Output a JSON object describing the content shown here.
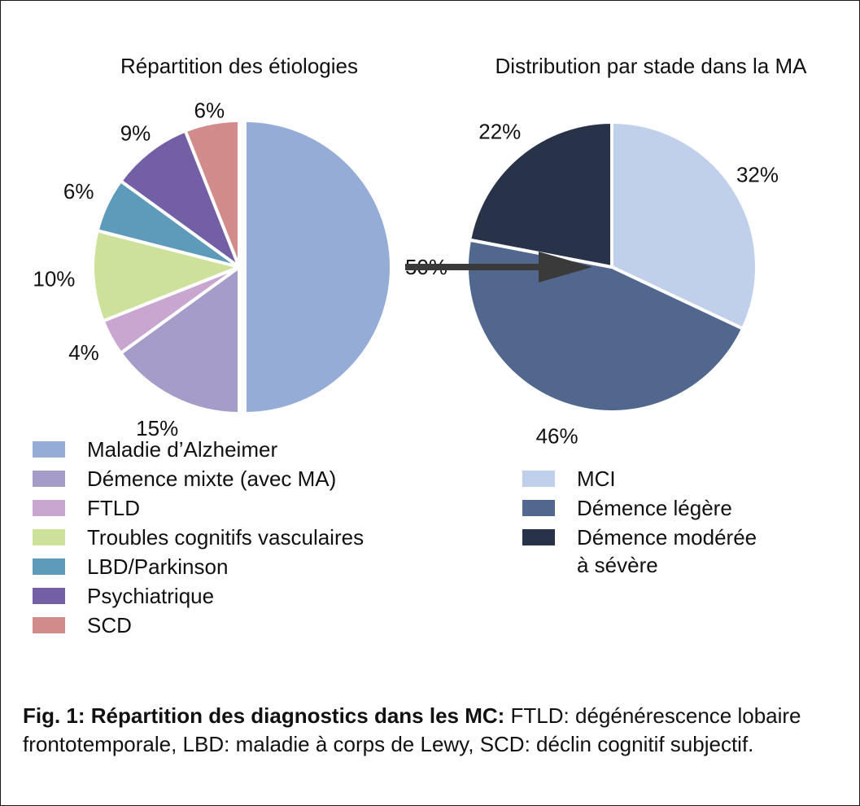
{
  "chart_data": [
    {
      "type": "pie",
      "title": "Répartition des étiologies",
      "slices": [
        {
          "label": "Maladie d’Alzheimer",
          "value": 50,
          "value_label": "50%",
          "color": "#95acd6"
        },
        {
          "label": "Démence mixte (avec MA)",
          "value": 15,
          "value_label": "15%",
          "color": "#a69cca"
        },
        {
          "label": "FTLD",
          "value": 4,
          "value_label": "4%",
          "color": "#c9a6cf"
        },
        {
          "label": "Troubles cognitifs vasculaires",
          "value": 10,
          "value_label": "10%",
          "color": "#cde19a"
        },
        {
          "label": "LBD/Parkinson",
          "value": 6,
          "value_label": "6%",
          "color": "#5e9ab9"
        },
        {
          "label": "Psychiatrique",
          "value": 9,
          "value_label": "9%",
          "color": "#735fa6"
        },
        {
          "label": "SCD",
          "value": 6,
          "value_label": "6%",
          "color": "#d18b8b"
        }
      ],
      "legend_placement": "bottom-left"
    },
    {
      "type": "pie",
      "title": "Distribution par stade dans la MA",
      "slices": [
        {
          "label": "MCI",
          "value": 32,
          "value_label": "32%",
          "color": "#c1d0ea"
        },
        {
          "label": "Démence légère",
          "value": 46,
          "value_label": "46%",
          "color": "#52678e"
        },
        {
          "label": "Démence modérée à sévère",
          "legend_lines": [
            "Démence modérée",
            "à sévère"
          ],
          "value": 22,
          "value_label": "22%",
          "color": "#283349"
        }
      ],
      "legend_placement": "bottom-right"
    }
  ],
  "caption": {
    "bold": "Fig. 1: Répartition des diagnostics dans les MC:",
    "text": " FTLD: dégénérescence lobaire frontotemporale, LBD: maladie à corps de Lewy, SCD: déclin cognitif subjectif."
  },
  "arrow_color": "#3a3a3a"
}
